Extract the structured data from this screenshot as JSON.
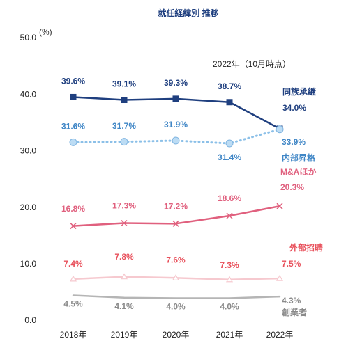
{
  "chart_data": {
    "type": "line",
    "title": "就任経緯別 推移",
    "y_unit": "(%)",
    "annotation": "2022年（10月時点）",
    "categories": [
      "2018年",
      "2019年",
      "2020年",
      "2021年",
      "2022年"
    ],
    "ylim": [
      0,
      50
    ],
    "yticks": [
      {
        "value": 0,
        "label": "0.0"
      },
      {
        "value": 10,
        "label": "10.0"
      },
      {
        "value": 20,
        "label": "20.0"
      },
      {
        "value": 30,
        "label": "30.0"
      },
      {
        "value": 40,
        "label": "40.0"
      },
      {
        "value": 50,
        "label": "50.0"
      }
    ],
    "series": [
      {
        "name": "同族承継",
        "color": "#1f3f7f",
        "label_color": "#1f3f7f",
        "marker": "square",
        "dash": "solid",
        "values": [
          39.6,
          39.1,
          39.3,
          38.7,
          34.0
        ],
        "value_labels": [
          "39.6%",
          "39.1%",
          "39.3%",
          "38.7%",
          "34.0%"
        ]
      },
      {
        "name": "内部昇格",
        "color": "#8cc0e8",
        "label_color": "#3f86c6",
        "marker": "circle",
        "dash": "dotted",
        "values": [
          31.6,
          31.7,
          31.9,
          31.4,
          33.9
        ],
        "value_labels": [
          "31.6%",
          "31.7%",
          "31.9%",
          "31.4%",
          "33.9%"
        ]
      },
      {
        "name": "M&Aほか",
        "color": "#e0607e",
        "label_color": "#e0607e",
        "marker": "cross",
        "dash": "solid",
        "values": [
          16.8,
          17.3,
          17.2,
          18.6,
          20.3
        ],
        "value_labels": [
          "16.8%",
          "17.3%",
          "17.2%",
          "18.6%",
          "20.3%"
        ]
      },
      {
        "name": "外部招聘",
        "color": "#f6c9cf",
        "label_color": "#e8505b",
        "marker": "triangle",
        "dash": "solid",
        "values": [
          7.4,
          7.8,
          7.6,
          7.3,
          7.5
        ],
        "value_labels": [
          "7.4%",
          "7.8%",
          "7.6%",
          "7.3%",
          "7.5%"
        ]
      },
      {
        "name": "創業者",
        "color": "#b5b5b5",
        "label_color": "#8a8a8a",
        "marker": "none",
        "dash": "solid",
        "values": [
          4.5,
          4.1,
          4.0,
          4.0,
          4.3
        ],
        "value_labels": [
          "4.5%",
          "4.1%",
          "4.0%",
          "4.0%",
          "4.3%"
        ]
      }
    ]
  }
}
